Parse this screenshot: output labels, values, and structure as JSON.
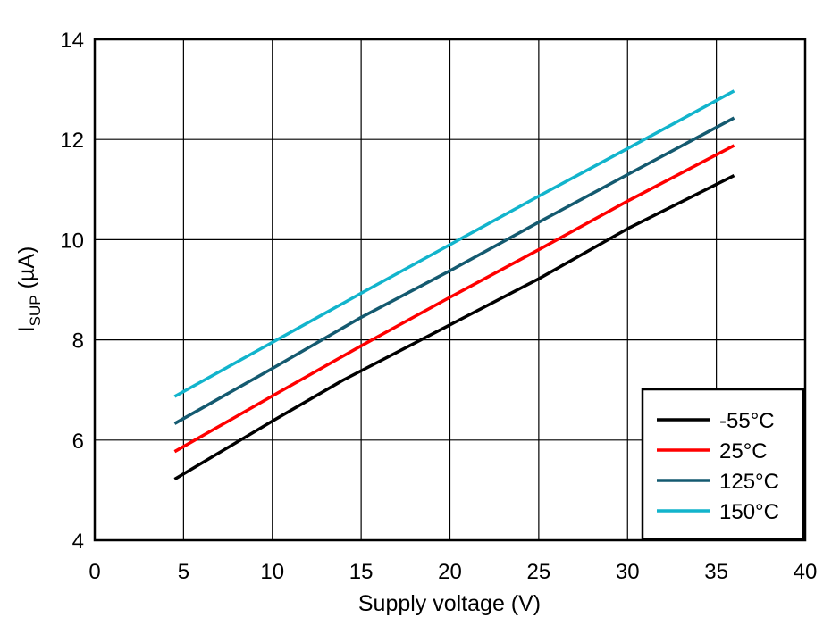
{
  "chart_data": {
    "type": "line",
    "xlabel": "Supply voltage (V)",
    "ylabel_main": "I",
    "ylabel_sub": "SUP",
    "ylabel_unit": " (µA)",
    "xlim": [
      0,
      40
    ],
    "ylim": [
      4,
      14
    ],
    "xticks": [
      "0",
      "5",
      "10",
      "15",
      "20",
      "25",
      "30",
      "35",
      "40"
    ],
    "yticks": [
      "4",
      "6",
      "8",
      "10",
      "12",
      "14"
    ],
    "grid": true,
    "legend_position": "bottom-right",
    "series": [
      {
        "name": "-55°C",
        "color": "#000000",
        "x": [
          4.5,
          10,
          14,
          20,
          25,
          30,
          36
        ],
        "y": [
          5.22,
          6.38,
          7.2,
          8.3,
          9.22,
          10.22,
          11.28
        ]
      },
      {
        "name": "25°C",
        "color": "#ff0000",
        "x": [
          4.5,
          10,
          15,
          20,
          25,
          30,
          36
        ],
        "y": [
          5.77,
          6.88,
          7.88,
          8.85,
          9.8,
          10.77,
          11.88
        ]
      },
      {
        "name": "125°C",
        "color": "#145a70",
        "x": [
          4.5,
          10,
          15,
          20,
          25,
          30,
          36
        ],
        "y": [
          6.33,
          7.43,
          8.45,
          9.38,
          10.35,
          11.3,
          12.43
        ]
      },
      {
        "name": "150°C",
        "color": "#12b4cc",
        "x": [
          4.5,
          10,
          15,
          20,
          25,
          30,
          36
        ],
        "y": [
          6.87,
          7.95,
          8.93,
          9.9,
          10.87,
          11.82,
          12.97
        ]
      }
    ]
  }
}
